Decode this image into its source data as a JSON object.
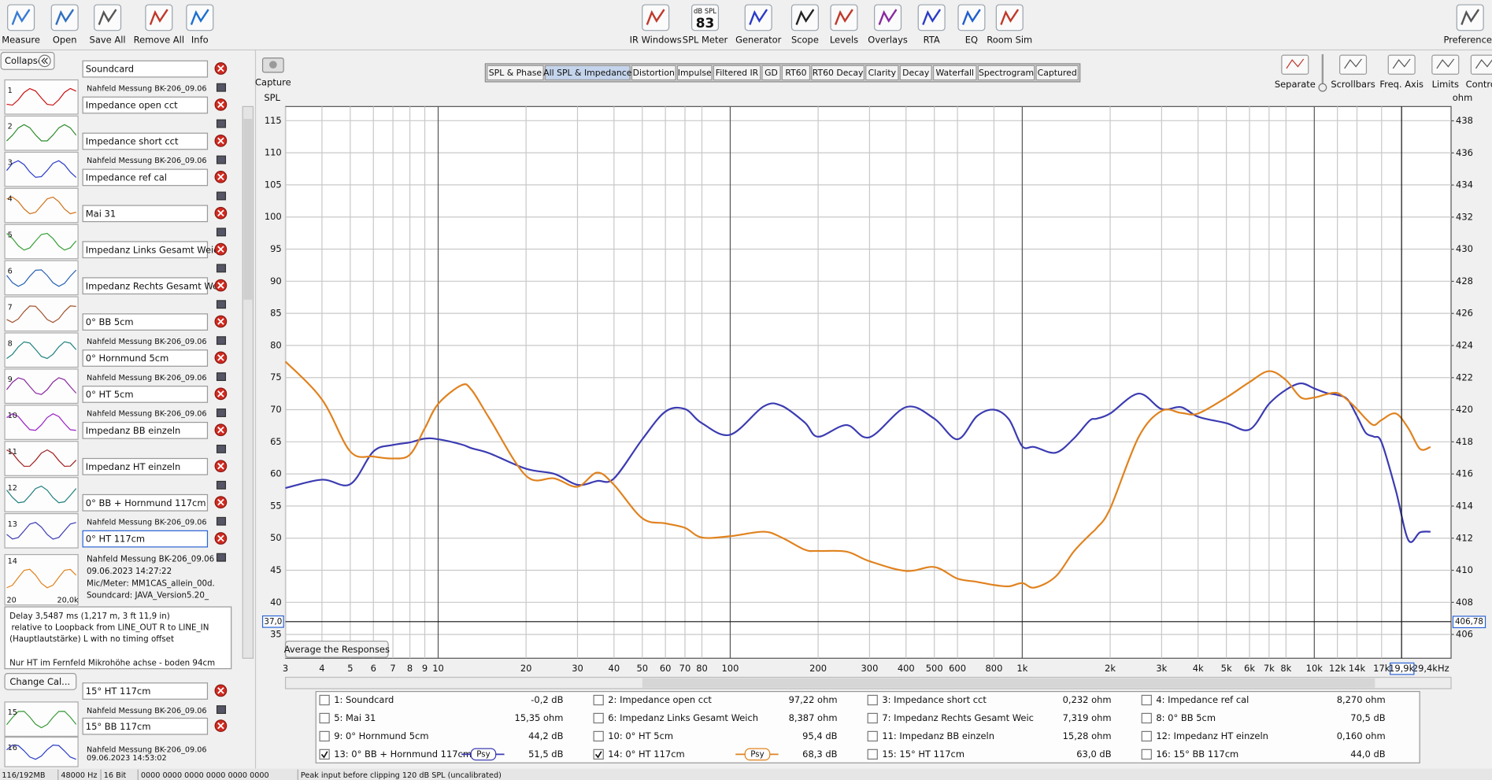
{
  "toolbar": {
    "left": [
      "Measure",
      "Open",
      "Save All",
      "Remove All",
      "Info"
    ],
    "center": [
      "IR Windows",
      "SPL Meter",
      "Generator",
      "Scope",
      "Levels",
      "Overlays",
      "RTA",
      "EQ",
      "Room Sim"
    ],
    "right": [
      "Preferences"
    ],
    "spl_meter_unit": "dB SPL",
    "spl_meter_value": "83"
  },
  "panel": {
    "collapse": "Collapse",
    "items": [
      {
        "number": 1,
        "name": "Soundcard",
        "note": "Nahfeld Messung BK-206_09.06"
      },
      {
        "number": 2,
        "name": "Impedance open cct"
      },
      {
        "number": 3,
        "name": "Impedance short cct",
        "note": "Nahfeld Messung BK-206_09.06"
      },
      {
        "number": 4,
        "name": "Impedance ref cal"
      },
      {
        "number": 5,
        "name": "Mai 31"
      },
      {
        "number": 6,
        "name": "Impedanz Links Gesamt Weich"
      },
      {
        "number": 7,
        "name": "Impedanz Rechts Gesamt Weic"
      },
      {
        "number": 8,
        "name": "0° BB 5cm",
        "note": "Nahfeld Messung BK-206_09.06"
      },
      {
        "number": 9,
        "name": "0° Hornmund 5cm",
        "note": "Nahfeld Messung BK-206_09.06"
      },
      {
        "number": 10,
        "name": "0° HT 5cm",
        "note": "Nahfeld Messung BK-206_09.06"
      },
      {
        "number": 11,
        "name": "Impedanz BB einzeln"
      },
      {
        "number": 12,
        "name": "Impedanz HT einzeln"
      },
      {
        "number": 13,
        "name": "0° BB + Hornmund 117cm",
        "note": "Nahfeld Messung BK-206_09.06"
      },
      {
        "number": 14,
        "name": "0° HT 117cm",
        "selected": true
      },
      {
        "number": 15,
        "name": "15° HT 117cm",
        "note": "Nahfeld Messung BK-206_09.06"
      },
      {
        "number": 16,
        "name": "15° BB 117cm",
        "note": "Nahfeld Messung BK-206_09.06",
        "date": "09.06.2023 14:53:02"
      }
    ],
    "expanded": {
      "title": "Nahfeld Messung BK-206_09.06",
      "date": "09.06.2023 14:27:22",
      "mic": "Mic/Meter: MM1CAS_allein_00d.",
      "soundcard": "Soundcard: JAVA_Version5.20_",
      "axis_start": "20",
      "axis_end": "20,0k",
      "notes": [
        "Delay 3,5487 ms (1,217 m, 3 ft 11,9 in)",
        "relative to Loopback from LINE_OUT R to LINE_IN",
        "(Hauptlautstärke) L with no timing offset"
      ],
      "remark": "Nur HT im Fernfeld Mikrohöhe achse - boden 94cm",
      "change_cal": "Change Cal..."
    }
  },
  "capture": "Capture",
  "tabs": [
    {
      "label": "SPL & Phase"
    },
    {
      "label": "All SPL & Impedance",
      "active": true
    },
    {
      "label": "Distortion"
    },
    {
      "label": "Impulse"
    },
    {
      "label": "Filtered IR"
    },
    {
      "label": "GD"
    },
    {
      "label": "RT60"
    },
    {
      "label": "RT60 Decay"
    },
    {
      "label": "Clarity"
    },
    {
      "label": "Decay"
    },
    {
      "label": "Waterfall"
    },
    {
      "label": "Spectrogram"
    },
    {
      "label": "Captured"
    }
  ],
  "view_buttons": [
    "Separate",
    "Scrollbars",
    "Freq. Axis",
    "Limits",
    "Controls"
  ],
  "chart_data": {
    "type": "line",
    "y_label": "SPL",
    "y2_label": "ohm",
    "xscale": "log",
    "grid": true,
    "x": [
      3,
      4,
      5,
      6,
      7,
      8,
      9,
      10,
      12,
      13,
      15,
      20,
      25,
      30,
      35,
      40,
      50,
      60,
      70,
      80,
      100,
      130,
      150,
      180,
      200,
      250,
      300,
      400,
      500,
      600,
      700,
      800,
      900,
      1000,
      1100,
      1300,
      1500,
      1700,
      1800,
      2000,
      2500,
      3000,
      3500,
      4000,
      5000,
      6000,
      7000,
      8000,
      9000,
      10000,
      11000,
      12000,
      13000,
      14000,
      15000,
      16000,
      17000,
      19000,
      21000,
      23000,
      25000
    ],
    "series": [
      {
        "name": "13: 0° BB + Hornmund 117cm",
        "color": "#3b3bb2",
        "readout": "51,5 dB",
        "checked": true,
        "psy": "Psy",
        "values": [
          57.8,
          59.1,
          58.4,
          63.5,
          64.5,
          64.9,
          65.5,
          65.4,
          64.6,
          64.0,
          63.2,
          60.8,
          60.0,
          58.3,
          58.9,
          59.3,
          65.4,
          69.7,
          70.1,
          67.9,
          66.1,
          70.5,
          70.6,
          68.0,
          65.8,
          67.6,
          65.7,
          70.4,
          68.6,
          65.4,
          69.0,
          70.0,
          68.5,
          64.3,
          64.2,
          63.3,
          65.5,
          68.3,
          68.6,
          69.4,
          72.5,
          70.1,
          70.4,
          68.9,
          67.9,
          66.9,
          70.9,
          73.1,
          74.1,
          73.3,
          72.6,
          72.3,
          71.6,
          69.0,
          66.4,
          65.8,
          64.9,
          57.5,
          49.7,
          50.9,
          51.0
        ]
      },
      {
        "name": "14: 0° HT 117cm",
        "color": "#e0821e",
        "readout": "68,3 dB",
        "checked": true,
        "psy": "Psy",
        "values": [
          77.5,
          71.6,
          63.5,
          62.7,
          62.4,
          63.0,
          67.1,
          70.9,
          73.8,
          73.1,
          68.6,
          59.7,
          59.3,
          58.0,
          60.2,
          58.3,
          53.1,
          52.3,
          51.6,
          50.1,
          50.3,
          51.0,
          50.1,
          48.2,
          48.0,
          47.9,
          46.4,
          44.9,
          45.5,
          43.7,
          43.2,
          42.7,
          42.5,
          43.0,
          42.3,
          44.0,
          47.9,
          50.5,
          51.6,
          54.6,
          65.7,
          69.8,
          69.5,
          69.4,
          71.9,
          74.3,
          76.0,
          74.6,
          71.9,
          71.9,
          72.4,
          72.6,
          71.5,
          70.1,
          68.6,
          67.6,
          68.4,
          69.4,
          67.1,
          63.9,
          64.2
        ]
      }
    ],
    "xlim": [
      3,
      29400
    ],
    "ylim": [
      31.3,
      117.2
    ],
    "y2lim": [
      404.52,
      438.89
    ],
    "xticks": [
      3,
      4,
      5,
      6,
      7,
      8,
      9,
      10,
      20,
      30,
      40,
      50,
      60,
      70,
      80,
      100,
      200,
      300,
      400,
      500,
      600,
      800,
      {
        "value": 1000,
        "label": "1k"
      },
      {
        "value": 2000,
        "label": "2k"
      },
      {
        "value": 3000,
        "label": "3k"
      },
      {
        "value": 4000,
        "label": "4k"
      },
      {
        "value": 5000,
        "label": "5k"
      },
      {
        "value": 6000,
        "label": "6k"
      },
      {
        "value": 7000,
        "label": "7k"
      },
      {
        "value": 8000,
        "label": "8k"
      },
      {
        "value": 10000,
        "label": "10k"
      },
      {
        "value": 12000,
        "label": "12k"
      },
      {
        "value": 14000,
        "label": "14k"
      },
      {
        "value": 17000,
        "label": "17k"
      },
      {
        "value": 29400,
        "label": "29,4kHz"
      }
    ],
    "yticks": [
      35,
      40,
      45,
      50,
      55,
      60,
      65,
      70,
      75,
      80,
      85,
      90,
      95,
      100,
      105,
      110,
      115
    ],
    "y2ticks": [
      406,
      408,
      410,
      412,
      414,
      416,
      418,
      420,
      422,
      424,
      426,
      428,
      430,
      432,
      434,
      436,
      438
    ],
    "cursor": {
      "x": 19900,
      "x_label": "19,9k",
      "y": 37.0,
      "y_label": "37,0",
      "y2": 406.78,
      "y2_label": "406,78"
    },
    "button": "Average the Responses"
  },
  "legend": {
    "rows": [
      {
        "name": "1: Soundcard",
        "value": "-0,2 dB",
        "color": "#cc1010",
        "checked": false
      },
      {
        "name": "2: Impedance open cct",
        "value": "97,22 ohm",
        "color": "#2e8b2e",
        "checked": false
      },
      {
        "name": "3: Impedance short cct",
        "value": "0,232 ohm",
        "color": "#2b3cc8",
        "checked": false
      },
      {
        "name": "4: Impedance ref cal",
        "value": "8,270 ohm",
        "color": "#d0731a",
        "checked": false
      },
      {
        "name": "5: Mai 31",
        "value": "15,35 ohm",
        "color": "#3aa03a",
        "checked": false
      },
      {
        "name": "6: Impedanz Links Gesamt Weich",
        "value": "8,387 ohm",
        "color": "#2a62b4",
        "checked": false
      },
      {
        "name": "7: Impedanz Rechts Gesamt Weic",
        "value": "7,319 ohm",
        "color": "#a0522d",
        "checked": false
      },
      {
        "name": "8: 0° BB 5cm",
        "value": "70,5 dB",
        "color": "#1f8080",
        "checked": false
      },
      {
        "name": "9: 0° Hornmund 5cm",
        "value": "44,2 dB",
        "color": "#8a2aa0",
        "checked": false
      },
      {
        "name": "10: 0° HT 5cm",
        "value": "95,4 dB",
        "color": "#9a20c8",
        "checked": false
      },
      {
        "name": "11: Impedanz BB einzeln",
        "value": "15,28 ohm",
        "color": "#a01f1f",
        "checked": false
      },
      {
        "name": "12: Impedanz HT einzeln",
        "value": "0,160 ohm",
        "color": "#1f7f7f",
        "checked": false
      },
      {
        "name": "15: 15° HT 117cm",
        "value": "63,0 dB",
        "color": "#3a9a3a",
        "checked": false
      },
      {
        "name": "16: 15° BB 117cm",
        "value": "44,0 dB",
        "color": "#2b3cc8",
        "checked": false
      }
    ]
  },
  "status": [
    "116/192MB",
    "48000 Hz",
    "16 Bit",
    "0000 0000 0000 0000 0000 0000",
    "Peak input before clipping 120 dB SPL (uncalibrated)"
  ]
}
